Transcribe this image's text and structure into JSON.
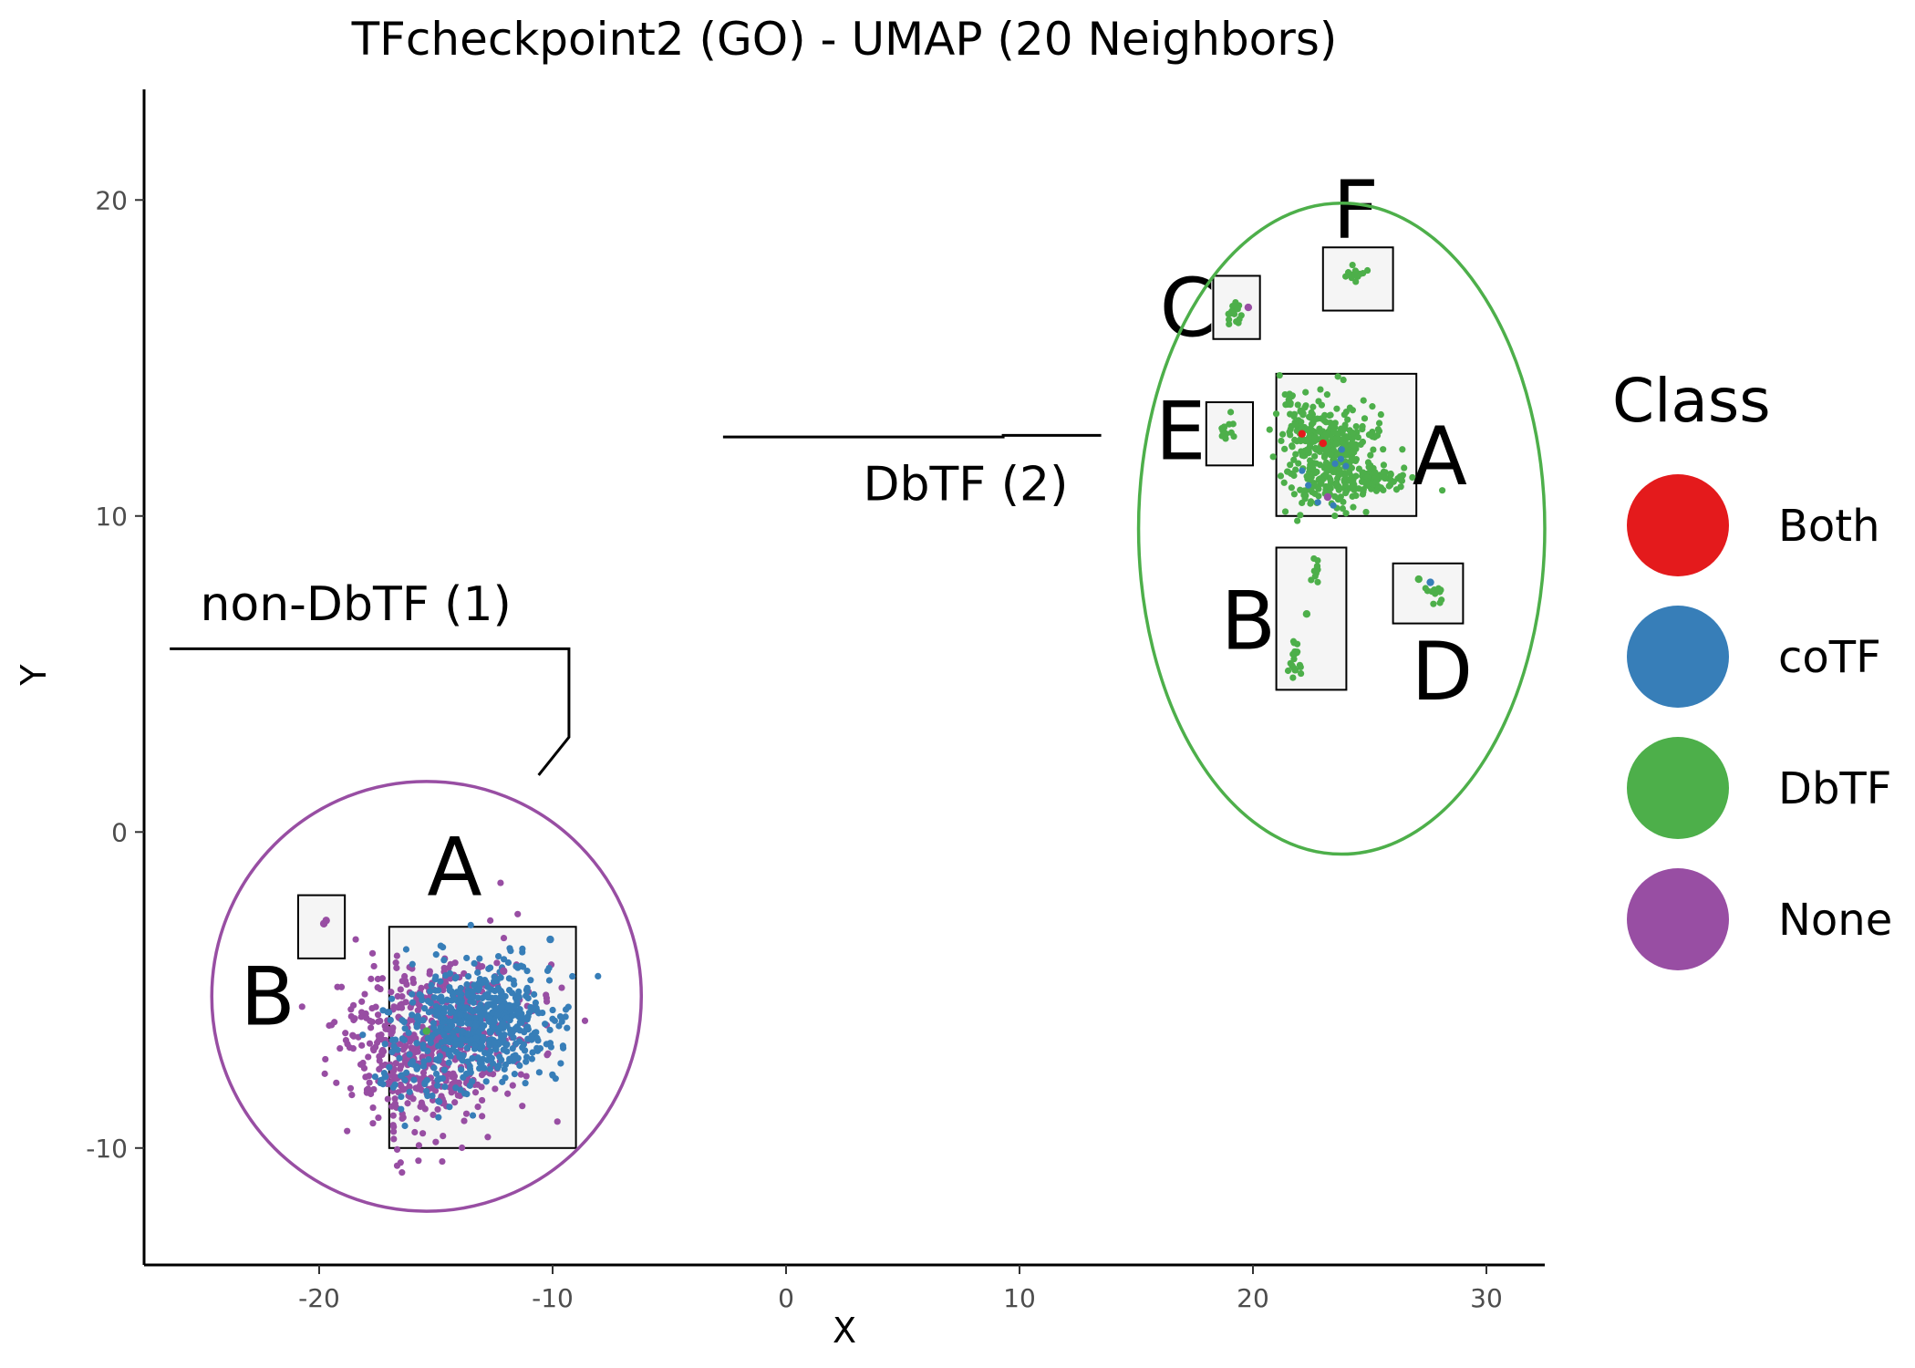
{
  "chart_data": {
    "type": "scatter",
    "title": "TFcheckpoint2 (GO) - UMAP (20 Neighbors)",
    "xlabel": "X",
    "ylabel": "Y",
    "xlim": [
      -27.5,
      32.5
    ],
    "ylim": [
      -13.7,
      23.5
    ],
    "xticks": [
      -20,
      -10,
      0,
      10,
      20,
      30
    ],
    "xtick_labels": [
      "-20",
      "-10",
      "0",
      "10",
      "20",
      "30"
    ],
    "yticks": [
      -10,
      0,
      10,
      20
    ],
    "ytick_labels": [
      "-10",
      "0",
      "10",
      "20"
    ],
    "grid": false,
    "legend": {
      "title": "Class",
      "position": "right",
      "entries": [
        {
          "name": "Both",
          "color": "#E41A1C"
        },
        {
          "name": "coTF",
          "color": "#377EB8"
        },
        {
          "name": "DbTF",
          "color": "#4DAF4A"
        },
        {
          "name": "None",
          "color": "#984EA3"
        }
      ]
    },
    "groups": [
      {
        "label": "non-DbTF (1)",
        "color": "#984EA3",
        "ellipse": {
          "cx": -15.4,
          "cy": -5.2,
          "rx": 9.2,
          "ry": 6.8
        },
        "leader": [
          [
            -26.4,
            5.8
          ],
          [
            -9.3,
            5.8
          ],
          [
            -9.3,
            3.0
          ],
          [
            -10.6,
            1.8
          ]
        ],
        "label_pos": [
          -25.1,
          6.7
        ],
        "clusters": [
          {
            "letter": "A",
            "box": [
              -17.0,
              -10.0,
              -9.0,
              -3.0
            ],
            "letter_pos": [
              -14.2,
              -2.0
            ]
          },
          {
            "letter": "B",
            "box": [
              -20.9,
              -4.0,
              -18.9,
              -2.0
            ],
            "letter_pos": [
              -22.2,
              -6.1
            ]
          }
        ]
      },
      {
        "label": "DbTF (2)",
        "color": "#4DAF4A",
        "ellipse": {
          "cx": 23.8,
          "cy": 9.6,
          "rx": 8.7,
          "ry": 10.3
        },
        "leader": [
          [
            -2.7,
            12.5
          ],
          [
            9.3,
            12.5
          ],
          [
            9.3,
            12.55
          ],
          [
            13.5,
            12.55
          ]
        ],
        "label_pos": [
          3.3,
          10.5
        ],
        "clusters": [
          {
            "letter": "A",
            "box": [
              21.0,
              10.0,
              27.0,
              14.5
            ],
            "letter_pos": [
              28.0,
              11.0
            ]
          },
          {
            "letter": "B",
            "box": [
              21.0,
              4.5,
              24.0,
              9.0
            ],
            "letter_pos": [
              19.8,
              5.8
            ]
          },
          {
            "letter": "C",
            "box": [
              18.3,
              15.6,
              20.3,
              17.6
            ],
            "letter_pos": [
              17.2,
              15.7
            ]
          },
          {
            "letter": "D",
            "box": [
              26.0,
              6.6,
              29.0,
              8.5
            ],
            "letter_pos": [
              28.1,
              4.2
            ]
          },
          {
            "letter": "E",
            "box": [
              18.0,
              11.6,
              20.0,
              13.6
            ],
            "letter_pos": [
              16.9,
              11.8
            ]
          },
          {
            "letter": "F",
            "box": [
              23.0,
              16.5,
              26.0,
              18.5
            ],
            "letter_pos": [
              24.4,
              18.8
            ]
          }
        ]
      }
    ],
    "point_clouds": [
      {
        "class": "None",
        "cx": -15.0,
        "cy": -6.5,
        "sx": 2.0,
        "sy": 1.3,
        "n": 520,
        "seed": 11
      },
      {
        "class": "None",
        "cx": -16.4,
        "cy": -7.6,
        "sx": 0.9,
        "sy": 1.2,
        "n": 90,
        "seed": 12
      },
      {
        "class": "coTF",
        "cx": -13.0,
        "cy": -5.9,
        "sx": 1.6,
        "sy": 0.9,
        "n": 520,
        "seed": 13
      },
      {
        "class": "coTF",
        "cx": -15.4,
        "cy": -7.4,
        "sx": 1.2,
        "sy": 0.9,
        "n": 80,
        "seed": 14
      },
      {
        "class": "DbTF",
        "cx": 23.4,
        "cy": 11.9,
        "sx": 1.0,
        "sy": 0.8,
        "n": 360,
        "seed": 21
      },
      {
        "class": "DbTF",
        "cx": 25.3,
        "cy": 11.1,
        "sx": 0.9,
        "sy": 0.18,
        "n": 70,
        "seed": 22
      },
      {
        "class": "DbTF",
        "cx": 22.2,
        "cy": 13.1,
        "sx": 0.4,
        "sy": 0.5,
        "n": 40,
        "seed": 23
      },
      {
        "class": "DbTF",
        "cx": 21.5,
        "cy": 13.7,
        "sx": 0.12,
        "sy": 0.15,
        "n": 10,
        "seed": 24
      },
      {
        "class": "DbTF",
        "cx": 22.7,
        "cy": 8.3,
        "sx": 0.08,
        "sy": 0.2,
        "n": 10,
        "seed": 25
      },
      {
        "class": "DbTF",
        "cx": 21.8,
        "cy": 5.5,
        "sx": 0.12,
        "sy": 0.35,
        "n": 22,
        "seed": 26
      },
      {
        "class": "DbTF",
        "cx": 19.3,
        "cy": 16.4,
        "sx": 0.18,
        "sy": 0.22,
        "n": 16,
        "seed": 27
      },
      {
        "class": "DbTF",
        "cx": 24.4,
        "cy": 17.7,
        "sx": 0.2,
        "sy": 0.12,
        "n": 14,
        "seed": 28
      },
      {
        "class": "DbTF",
        "cx": 18.9,
        "cy": 12.7,
        "sx": 0.15,
        "sy": 0.2,
        "n": 14,
        "seed": 29
      },
      {
        "class": "DbTF",
        "cx": 27.7,
        "cy": 7.6,
        "sx": 0.25,
        "sy": 0.18,
        "n": 12,
        "seed": 30
      },
      {
        "class": "coTF",
        "cx": 23.5,
        "cy": 11.7,
        "sx": 0.6,
        "sy": 0.5,
        "n": 8,
        "seed": 31
      }
    ],
    "points": [
      {
        "class": "None",
        "x": -19.7,
        "y": -2.8
      },
      {
        "class": "None",
        "x": -19.8,
        "y": -2.9
      },
      {
        "class": "coTF",
        "x": -10.1,
        "y": -3.4
      },
      {
        "class": "None",
        "x": -12.1,
        "y": -4.4
      },
      {
        "class": "DbTF",
        "x": -15.4,
        "y": -6.3
      },
      {
        "class": "Both",
        "x": 23.0,
        "y": 12.3
      },
      {
        "class": "Both",
        "x": 22.1,
        "y": 12.6
      },
      {
        "class": "None",
        "x": 23.2,
        "y": 10.6
      },
      {
        "class": "None",
        "x": 19.8,
        "y": 16.6
      },
      {
        "class": "coTF",
        "x": 27.6,
        "y": 7.9
      },
      {
        "class": "DbTF",
        "x": 27.1,
        "y": 8.0
      },
      {
        "class": "DbTF",
        "x": 22.3,
        "y": 6.9
      }
    ]
  }
}
